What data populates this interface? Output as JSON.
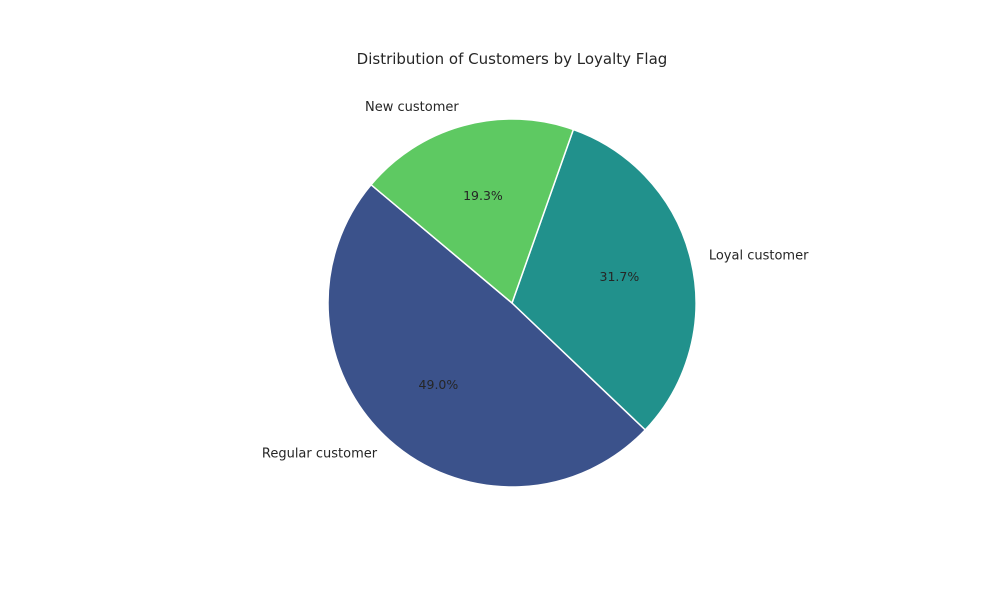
{
  "chart_data": {
    "type": "pie",
    "title": "Distribution of Customers by Loyalty Flag",
    "categories": [
      "Regular customer",
      "Loyal customer",
      "New customer"
    ],
    "values": [
      49.0,
      31.7,
      19.3
    ],
    "value_labels": [
      "49.0%",
      "31.7%",
      "19.3%"
    ],
    "colors": [
      "#3b528b",
      "#21918c",
      "#5ec962"
    ],
    "slice_edge_color": "#ffffff"
  }
}
